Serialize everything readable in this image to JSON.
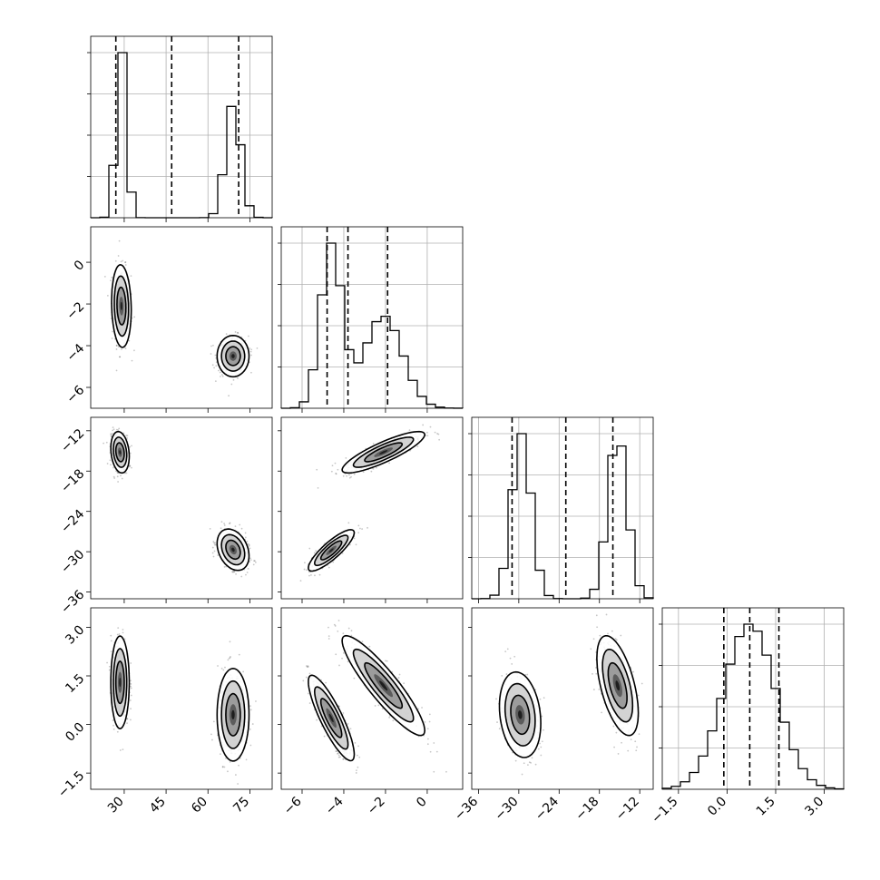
{
  "chart_data": {
    "type": "corner",
    "parameters": [
      {
        "range": [
          18,
          83
        ],
        "ticks": [
          30,
          45,
          60,
          75
        ],
        "tick_labels": [
          "30",
          "45",
          "60",
          "75"
        ],
        "quantiles": [
          27,
          47,
          71
        ],
        "modes": [
          {
            "mean": 29,
            "sd": 1.6,
            "weight": 0.5
          },
          {
            "mean": 69,
            "sd": 2.6,
            "weight": 0.5
          }
        ]
      },
      {
        "range": [
          -7,
          1.7
        ],
        "ticks": [
          -6,
          -4,
          -2,
          0
        ],
        "tick_labels": [
          "−6",
          "−4",
          "−2",
          "0"
        ],
        "quantiles": [
          -4.8,
          -3.8,
          -1.9
        ],
        "modes": [
          {
            "mean": -4.6,
            "sd": 0.5,
            "weight": 0.5
          },
          {
            "mean": -2.1,
            "sd": 0.9,
            "weight": 0.5
          }
        ]
      },
      {
        "range": [
          -37,
          -10
        ],
        "ticks": [
          -36,
          -30,
          -24,
          -18,
          -12
        ],
        "tick_labels": [
          "−36",
          "−30",
          "−24",
          "−18",
          "−12"
        ],
        "quantiles": [
          -31,
          -23,
          -16
        ],
        "modes": [
          {
            "mean": -29.6,
            "sd": 1.4,
            "weight": 0.5
          },
          {
            "mean": -15.3,
            "sd": 1.4,
            "weight": 0.5
          }
        ]
      },
      {
        "range": [
          -2,
          3.6
        ],
        "ticks": [
          -1.5,
          0.0,
          1.5,
          3.0
        ],
        "tick_labels": [
          "−1.5",
          "0.0",
          "1.5",
          "3.0"
        ],
        "quantiles": [
          -0.1,
          0.7,
          1.6
        ],
        "modes": [
          {
            "mean": 0.7,
            "sd": 0.8,
            "weight": 1.0
          }
        ]
      }
    ],
    "row_y_ticks": {
      "1": {
        "ticks": [
          0,
          -2,
          -4,
          -6
        ],
        "tick_labels": [
          "0",
          "−2",
          "−4",
          "−6"
        ]
      },
      "2": {
        "ticks": [
          -12,
          -18,
          -24,
          -30,
          -36
        ],
        "tick_labels": [
          "−12",
          "−18",
          "−24",
          "−30",
          "−36"
        ]
      },
      "3": {
        "ticks": [
          3.0,
          1.5,
          0.0,
          -1.5
        ],
        "tick_labels": [
          "3.0",
          "1.5",
          "0.0",
          "−1.5"
        ]
      }
    },
    "clusters": {
      "1-0": [
        {
          "mx": 29,
          "my": -2.1,
          "sx": 1.6,
          "sy": 0.9,
          "r": -0.1
        },
        {
          "mx": 69,
          "my": -4.5,
          "sx": 2.6,
          "sy": 0.45,
          "r": 0.0
        }
      ],
      "2-0": [
        {
          "mx": 28.5,
          "my": -15.2,
          "sx": 1.5,
          "sy": 1.4,
          "r": -0.2
        },
        {
          "mx": 69,
          "my": -29.7,
          "sx": 2.6,
          "sy": 1.4,
          "r": -0.3
        }
      ],
      "2-1": [
        {
          "mx": -2.1,
          "my": -15.2,
          "sx": 0.9,
          "sy": 1.4,
          "r": 0.85
        },
        {
          "mx": -4.6,
          "my": -29.8,
          "sx": 0.5,
          "sy": 1.4,
          "r": 0.85
        }
      ],
      "3-0": [
        {
          "mx": 28.5,
          "my": 1.3,
          "sx": 1.5,
          "sy": 0.65,
          "r": 0.0
        },
        {
          "mx": 69,
          "my": 0.3,
          "sx": 2.6,
          "sy": 0.65,
          "r": 0.0
        }
      ],
      "3-1": [
        {
          "mx": -2.1,
          "my": 1.2,
          "sx": 0.9,
          "sy": 0.7,
          "r": -0.9
        },
        {
          "mx": -4.6,
          "my": 0.2,
          "sx": 0.5,
          "sy": 0.6,
          "r": -0.85
        }
      ],
      "3-2": [
        {
          "mx": -29.8,
          "my": 0.3,
          "sx": 1.4,
          "sy": 0.6,
          "r": -0.2
        },
        {
          "mx": -15.3,
          "my": 1.2,
          "sx": 1.4,
          "sy": 0.7,
          "r": -0.55
        }
      ]
    },
    "histogram_bins": 20,
    "contour_levels": [
      1.0,
      1.6,
      2.2
    ],
    "grid": true
  }
}
